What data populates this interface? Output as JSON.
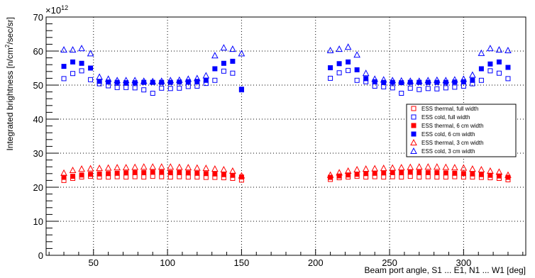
{
  "chart_data": {
    "type": "scatter",
    "title": "",
    "xlabel": "Beam port angle,  S1 ... E1, N1 ... W1 [deg]",
    "ylabel": "Integrated brightness [n/cm²/sec/sr]",
    "y_multiplier": "×10",
    "y_multiplier_exp": "12",
    "xlim": [
      18,
      342
    ],
    "ylim": [
      0,
      70
    ],
    "xticks": [
      50,
      100,
      150,
      200,
      250,
      300
    ],
    "yticks": [
      0,
      10,
      20,
      30,
      40,
      50,
      60,
      70
    ],
    "grid": true,
    "legend_position": "right",
    "x": [
      30,
      36,
      42,
      48,
      54,
      60,
      66,
      72,
      78,
      84,
      90,
      96,
      102,
      108,
      114,
      120,
      126,
      132,
      138,
      144,
      150,
      210,
      216,
      222,
      228,
      234,
      240,
      246,
      252,
      258,
      264,
      270,
      276,
      282,
      288,
      294,
      300,
      306,
      312,
      318,
      324,
      330
    ],
    "series": [
      {
        "name": "ESS thermal, full width",
        "marker": "open-square",
        "color": "#ff0000",
        "values": [
          22.0,
          22.6,
          23.0,
          23.2,
          23.0,
          23.0,
          23.1,
          23.0,
          23.1,
          23.0,
          23.2,
          23.1,
          23.0,
          23.1,
          23.0,
          23.0,
          22.9,
          22.9,
          22.8,
          22.6,
          22.1,
          22.3,
          22.8,
          23.0,
          23.2,
          23.0,
          23.1,
          23.0,
          23.1,
          23.0,
          23.2,
          23.0,
          23.1,
          23.0,
          23.0,
          23.1,
          23.0,
          23.0,
          22.9,
          22.8,
          22.6,
          22.2
        ]
      },
      {
        "name": "ESS cold, full width",
        "marker": "open-square",
        "color": "#0000ff",
        "values": [
          51.9,
          53.4,
          54.2,
          51.6,
          50.4,
          49.8,
          49.3,
          49.3,
          49.2,
          48.6,
          47.6,
          49.1,
          49.0,
          49.1,
          49.6,
          49.7,
          50.5,
          51.4,
          54.1,
          53.5,
          48.6,
          52.0,
          53.6,
          54.3,
          51.4,
          51.0,
          49.7,
          49.5,
          49.2,
          47.6,
          49.1,
          48.7,
          49.0,
          48.9,
          49.2,
          49.4,
          49.7,
          50.4,
          51.4,
          54.2,
          53.5,
          51.9
        ]
      },
      {
        "name": "ESS thermal, 6 cm width",
        "marker": "filled-square",
        "color": "#ff0000",
        "values": [
          22.9,
          23.2,
          23.6,
          23.8,
          23.9,
          24.0,
          24.1,
          24.2,
          24.3,
          24.3,
          24.4,
          24.4,
          24.3,
          24.3,
          24.2,
          24.1,
          24.0,
          23.9,
          23.7,
          23.5,
          23.0,
          22.9,
          23.3,
          23.6,
          23.8,
          24.0,
          24.1,
          24.2,
          24.3,
          24.3,
          24.4,
          24.4,
          24.3,
          24.3,
          24.2,
          24.1,
          24.0,
          23.9,
          23.7,
          23.5,
          23.3,
          22.9
        ]
      },
      {
        "name": "ESS cold, 6 cm width",
        "marker": "filled-square",
        "color": "#0000ff",
        "values": [
          55.5,
          56.8,
          56.4,
          55.0,
          51.1,
          50.9,
          50.8,
          50.7,
          50.7,
          50.8,
          50.8,
          50.8,
          50.8,
          50.9,
          51.0,
          51.1,
          51.4,
          54.8,
          56.4,
          57.0,
          48.8,
          55.1,
          56.3,
          56.8,
          54.5,
          51.9,
          51.0,
          50.8,
          50.8,
          50.7,
          50.8,
          50.8,
          50.8,
          50.8,
          50.8,
          50.9,
          51.0,
          51.4,
          54.8,
          56.2,
          56.8,
          55.2
        ]
      },
      {
        "name": "ESS thermal, 3 cm width",
        "marker": "open-triangle",
        "color": "#ff0000",
        "values": [
          24.2,
          25.0,
          25.4,
          25.5,
          25.6,
          25.7,
          25.8,
          25.8,
          25.9,
          26.0,
          26.0,
          26.0,
          26.0,
          25.9,
          25.8,
          25.7,
          25.6,
          25.4,
          25.2,
          24.8,
          23.4,
          23.6,
          24.3,
          24.8,
          25.2,
          25.4,
          25.5,
          25.6,
          25.7,
          25.8,
          25.9,
          26.0,
          26.0,
          26.0,
          25.9,
          25.8,
          25.7,
          25.4,
          25.2,
          24.8,
          24.5,
          23.6
        ]
      },
      {
        "name": "ESS cold, 3 cm width",
        "marker": "open-triangle",
        "color": "#0000ff",
        "values": [
          60.4,
          60.4,
          60.8,
          59.3,
          52.4,
          51.8,
          51.4,
          51.4,
          51.4,
          51.2,
          51.1,
          51.2,
          51.4,
          51.5,
          51.8,
          52.0,
          52.8,
          58.7,
          61.0,
          60.6,
          59.3,
          60.2,
          60.6,
          61.2,
          58.9,
          53.5,
          51.8,
          51.6,
          51.4,
          51.3,
          51.2,
          51.2,
          51.4,
          51.5,
          51.4,
          51.6,
          51.8,
          53.0,
          59.4,
          60.8,
          60.4,
          60.2
        ]
      }
    ]
  }
}
